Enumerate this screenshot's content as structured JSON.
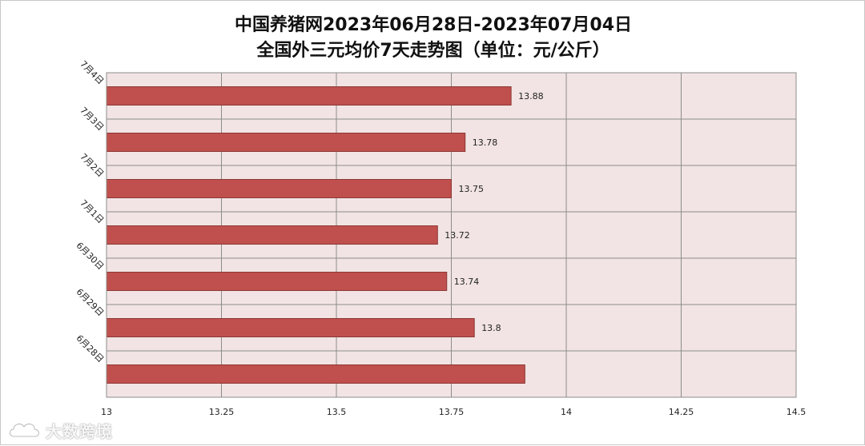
{
  "chart_data": {
    "type": "bar",
    "orientation": "horizontal",
    "title": "中国养猪网2023年06月28日-2023年07月04日",
    "subtitle": "全国外三元均价7天走势图（单位：元/公斤）",
    "categories": [
      "7月4日",
      "7月3日",
      "7月2日",
      "7月1日",
      "6月30日",
      "6月29日",
      "6月28日"
    ],
    "values": [
      13.88,
      13.78,
      13.75,
      13.72,
      13.74,
      13.8,
      13.91
    ],
    "data_labels": [
      "13.88",
      "13.78",
      "13.75",
      "13.72",
      "13.74",
      "13.8",
      ""
    ],
    "x_ticks": [
      "13",
      "13.25",
      "13.5",
      "13.75",
      "14",
      "14.25",
      "14.5"
    ],
    "xlim": [
      13,
      14.5
    ],
    "xlabel": "",
    "ylabel": "",
    "grid": true,
    "legend": "none",
    "colors": {
      "bar_fill": "#c0504d",
      "bar_stroke": "#8c3836",
      "plot_background": "#f2e4e4",
      "grid": "#8c8c8c"
    }
  },
  "watermark": {
    "icon": "cloud-logo-icon",
    "text": "大数跨境"
  }
}
